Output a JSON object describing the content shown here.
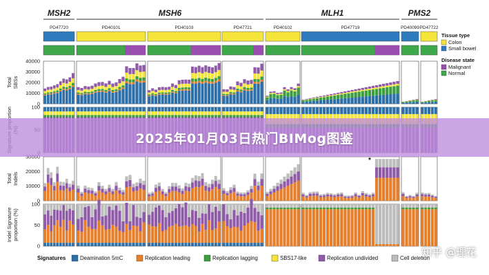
{
  "banner": {
    "title": "2025年01月03日热门BIMog图鉴"
  },
  "watermark": {
    "text": "知乎 @理花"
  },
  "figure": {
    "genes": [
      "MSH2",
      "MSH6",
      "MLH1",
      "PMS2"
    ],
    "samples": [
      {
        "id": "PD47720",
        "gene": "MSH2",
        "tissue": "Small bowel"
      },
      {
        "id": "PD40101",
        "gene": "MSH6",
        "tissue": "Colon"
      },
      {
        "id": "PD40103",
        "gene": "MSH6",
        "tissue": "Colon"
      },
      {
        "id": "PD47721",
        "gene": "MSH6",
        "tissue": "Colon"
      },
      {
        "id": "PD40102",
        "gene": "MLH1",
        "tissue": "Colon"
      },
      {
        "id": "PD47719",
        "gene": "MLH1",
        "tissue": "Small bowel"
      },
      {
        "id": "PD40099",
        "gene": "PMS2",
        "tissue": "Small bowel"
      },
      {
        "id": "PD47722",
        "gene": "PMS2",
        "tissue": "Colon"
      }
    ],
    "row_labels": {
      "sbs": "Total SBSs",
      "sbs_prop": "Signature proportion (%)",
      "indels": "Total Indels",
      "indel_prop": "Indel Signature proportion (%)"
    },
    "sbs_ticks": [
      "0",
      "10000",
      "20000",
      "30000",
      "40000"
    ],
    "prop_ticks": [
      "0",
      "50",
      "100"
    ],
    "indel_ticks": [
      "0",
      "10000",
      "20000",
      "30000"
    ],
    "legend": {
      "tissue_title": "Tissue type",
      "tissue": [
        {
          "label": "Colon",
          "color": "#f5e53a"
        },
        {
          "label": "Small bowel",
          "color": "#2d7bbd"
        }
      ],
      "disease_title": "Disease state",
      "disease": [
        {
          "label": "Malignant",
          "color": "#9a4fb0"
        },
        {
          "label": "Normal",
          "color": "#3fa84a"
        }
      ]
    },
    "signatures_title": "Signatures",
    "signatures": [
      {
        "label": "Deamination 5mC",
        "color": "#2d6fa8"
      },
      {
        "label": "Replication leading",
        "color": "#e57f2c"
      },
      {
        "label": "Replication lagging",
        "color": "#3c9e3e"
      },
      {
        "label": "SBS17-like",
        "color": "#f3e53b"
      },
      {
        "label": "Replication undivided",
        "color": "#8f5aa8"
      },
      {
        "label": "Cell deletion",
        "color": "#bdbdbd"
      }
    ],
    "star": "*"
  }
}
